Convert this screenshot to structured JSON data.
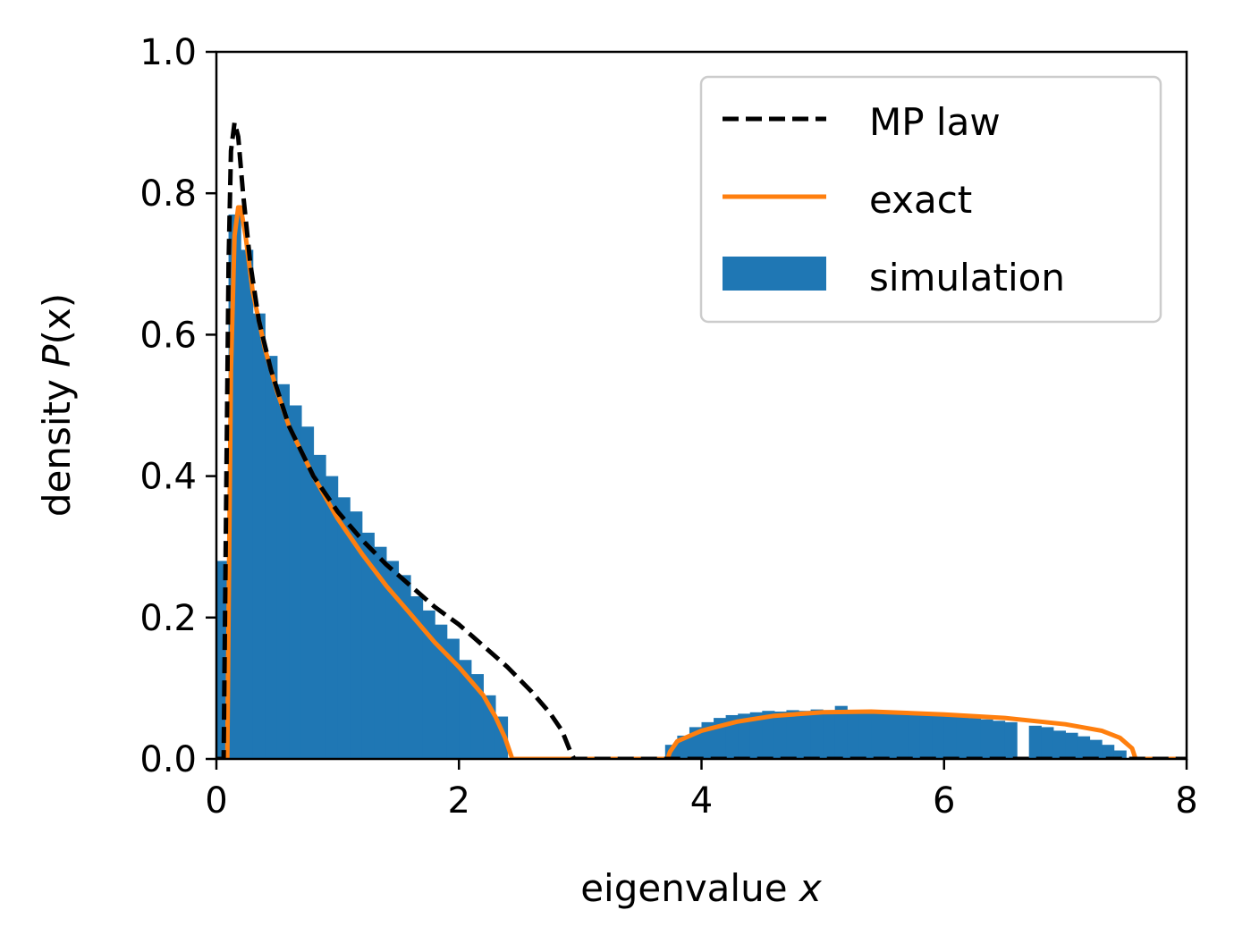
{
  "chart_data": {
    "type": "bar",
    "xlabel": "eigenvalue",
    "xlabel_var": "x",
    "ylabel": "density",
    "ylabel_func": "P",
    "ylabel_arg": "(x)",
    "xlim": [
      0,
      8
    ],
    "ylim": [
      0.0,
      1.0
    ],
    "x_ticks": [
      0,
      2,
      4,
      6,
      8
    ],
    "x_tick_labels": [
      "0",
      "2",
      "4",
      "6",
      "8"
    ],
    "y_ticks": [
      0.0,
      0.2,
      0.4,
      0.6,
      0.8,
      1.0
    ],
    "y_tick_labels": [
      "0.0",
      "0.2",
      "0.4",
      "0.6",
      "0.8",
      "1.0"
    ],
    "grid": false,
    "legend_position": "top-right",
    "colors": {
      "mp": "#000000",
      "exact": "#ff7f0e",
      "simulation": "#1f77b4"
    },
    "series": [
      {
        "name": "MP law",
        "kind": "line",
        "style": "dashed",
        "x": [
          0.0,
          0.06,
          0.08,
          0.1,
          0.12,
          0.15,
          0.18,
          0.22,
          0.28,
          0.35,
          0.45,
          0.6,
          0.8,
          1.0,
          1.2,
          1.4,
          1.6,
          1.8,
          2.0,
          2.2,
          2.4,
          2.6,
          2.75,
          2.85,
          2.92,
          2.95,
          3.1,
          4.0,
          5.0,
          6.0,
          7.0,
          8.0
        ],
        "y": [
          0.0,
          0.0,
          0.35,
          0.7,
          0.86,
          0.9,
          0.88,
          0.8,
          0.7,
          0.62,
          0.55,
          0.47,
          0.4,
          0.35,
          0.31,
          0.275,
          0.245,
          0.215,
          0.19,
          0.16,
          0.13,
          0.095,
          0.065,
          0.04,
          0.01,
          0.0,
          0.0,
          0.0,
          0.0,
          0.0,
          0.0,
          0.0
        ]
      },
      {
        "name": "exact",
        "kind": "line",
        "style": "solid",
        "x": [
          0.0,
          0.09,
          0.1,
          0.12,
          0.15,
          0.18,
          0.2,
          0.24,
          0.3,
          0.4,
          0.5,
          0.6,
          0.8,
          1.0,
          1.2,
          1.4,
          1.6,
          1.8,
          2.0,
          2.2,
          2.3,
          2.38,
          2.42,
          2.44,
          3.0,
          3.5,
          3.72,
          3.74,
          3.8,
          4.0,
          4.3,
          4.6,
          5.0,
          5.4,
          6.0,
          6.5,
          7.0,
          7.3,
          7.45,
          7.55,
          7.58,
          8.0
        ],
        "y": [
          0.0,
          0.0,
          0.2,
          0.55,
          0.74,
          0.78,
          0.78,
          0.74,
          0.66,
          0.58,
          0.52,
          0.47,
          0.4,
          0.34,
          0.29,
          0.245,
          0.205,
          0.165,
          0.13,
          0.09,
          0.06,
          0.03,
          0.01,
          0.0,
          0.0,
          0.0,
          0.0,
          0.01,
          0.025,
          0.04,
          0.053,
          0.061,
          0.066,
          0.067,
          0.063,
          0.058,
          0.049,
          0.04,
          0.03,
          0.015,
          0.0,
          0.0
        ]
      },
      {
        "name": "simulation",
        "kind": "histogram",
        "bin_width": 0.1,
        "x": [
          0.05,
          0.15,
          0.25,
          0.35,
          0.45,
          0.55,
          0.65,
          0.75,
          0.85,
          0.95,
          1.05,
          1.15,
          1.25,
          1.35,
          1.45,
          1.55,
          1.65,
          1.75,
          1.85,
          1.95,
          2.05,
          2.15,
          2.25,
          2.35,
          3.75,
          3.85,
          3.95,
          4.05,
          4.15,
          4.25,
          4.35,
          4.45,
          4.55,
          4.65,
          4.75,
          4.85,
          4.95,
          5.05,
          5.15,
          5.25,
          5.35,
          5.45,
          5.55,
          5.65,
          5.75,
          5.85,
          5.95,
          6.05,
          6.15,
          6.25,
          6.35,
          6.45,
          6.55,
          6.75,
          6.85,
          6.95,
          7.05,
          7.15,
          7.25,
          7.35,
          7.45
        ],
        "y": [
          0.28,
          0.77,
          0.72,
          0.63,
          0.57,
          0.53,
          0.5,
          0.47,
          0.43,
          0.4,
          0.37,
          0.35,
          0.32,
          0.3,
          0.28,
          0.26,
          0.23,
          0.21,
          0.19,
          0.17,
          0.14,
          0.12,
          0.09,
          0.06,
          0.02,
          0.033,
          0.045,
          0.052,
          0.058,
          0.062,
          0.064,
          0.066,
          0.068,
          0.067,
          0.069,
          0.068,
          0.07,
          0.069,
          0.075,
          0.068,
          0.067,
          0.066,
          0.066,
          0.065,
          0.064,
          0.063,
          0.062,
          0.06,
          0.059,
          0.058,
          0.056,
          0.054,
          0.052,
          0.047,
          0.045,
          0.04,
          0.037,
          0.032,
          0.027,
          0.02,
          0.012
        ]
      }
    ]
  }
}
